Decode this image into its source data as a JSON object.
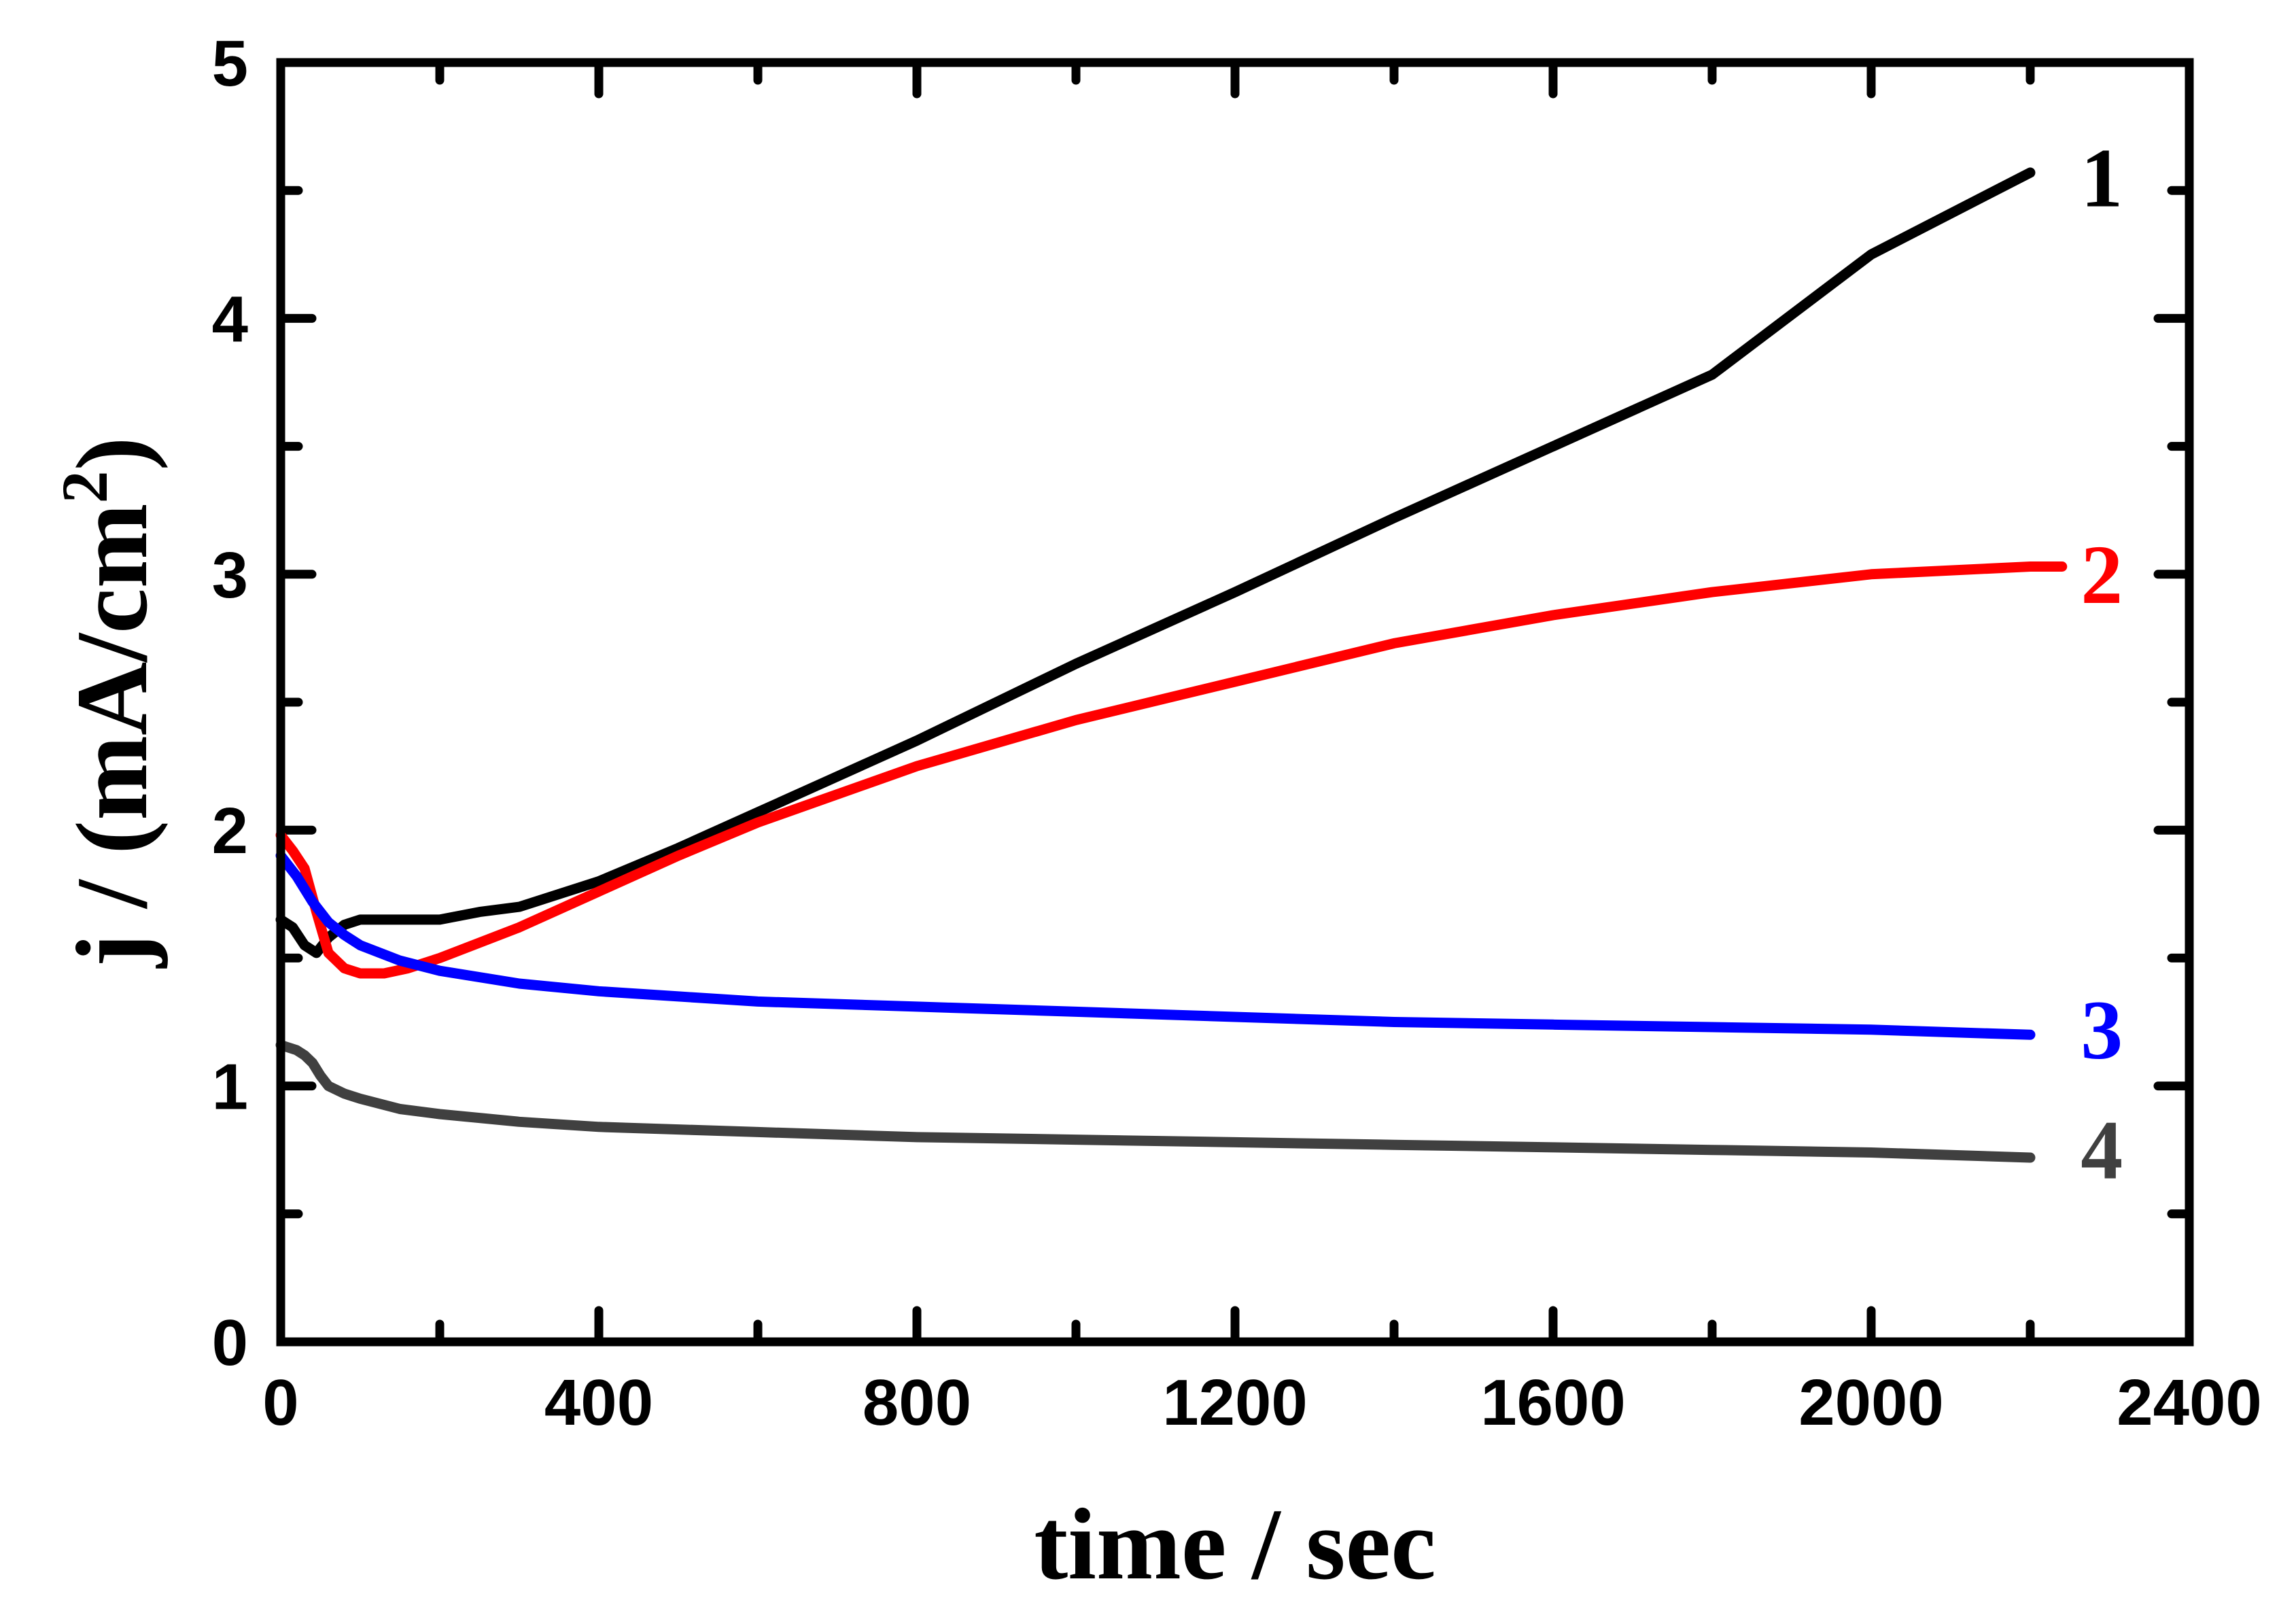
{
  "chart_data": {
    "type": "line",
    "xlabel": "time / sec",
    "ylabel_main": "j / (mA/cm",
    "ylabel_sup": "2",
    "ylabel_close": ")",
    "xlim": [
      0,
      2400
    ],
    "ylim": [
      0,
      5
    ],
    "x_ticks": [
      0,
      400,
      800,
      1200,
      1600,
      2000,
      2400
    ],
    "x_tick_labels": [
      "0",
      "400",
      "800",
      "1200",
      "1600",
      "2000",
      "2400"
    ],
    "y_ticks": [
      0,
      1,
      2,
      3,
      4,
      5
    ],
    "y_tick_labels": [
      "0",
      "1",
      "2",
      "3",
      "4",
      "5"
    ],
    "grid": false,
    "series": [
      {
        "name": "1",
        "color": "#000000",
        "x": [
          0,
          15,
          30,
          45,
          60,
          80,
          100,
          150,
          200,
          250,
          300,
          400,
          500,
          600,
          800,
          1000,
          1200,
          1400,
          1600,
          1800,
          2000,
          2200
        ],
        "y": [
          1.65,
          1.62,
          1.55,
          1.52,
          1.58,
          1.63,
          1.65,
          1.65,
          1.65,
          1.68,
          1.7,
          1.8,
          1.93,
          2.07,
          2.35,
          2.65,
          2.93,
          3.22,
          3.5,
          3.78,
          4.25,
          4.57
        ]
      },
      {
        "name": "2",
        "color": "#ff0000",
        "x": [
          0,
          15,
          30,
          45,
          60,
          80,
          100,
          130,
          160,
          200,
          300,
          400,
          500,
          600,
          800,
          1000,
          1200,
          1400,
          1600,
          1800,
          2000,
          2200,
          2240
        ],
        "y": [
          1.98,
          1.92,
          1.85,
          1.68,
          1.52,
          1.46,
          1.44,
          1.44,
          1.46,
          1.5,
          1.62,
          1.76,
          1.9,
          2.03,
          2.25,
          2.43,
          2.58,
          2.73,
          2.84,
          2.93,
          3.0,
          3.03,
          3.03
        ]
      },
      {
        "name": "3",
        "color": "#0000ff",
        "x": [
          0,
          20,
          40,
          60,
          80,
          100,
          150,
          200,
          300,
          400,
          500,
          600,
          800,
          1000,
          1200,
          1400,
          1600,
          1800,
          2000,
          2200
        ],
        "y": [
          1.9,
          1.82,
          1.72,
          1.64,
          1.59,
          1.55,
          1.49,
          1.45,
          1.4,
          1.37,
          1.35,
          1.33,
          1.31,
          1.29,
          1.27,
          1.25,
          1.24,
          1.23,
          1.22,
          1.2
        ]
      },
      {
        "name": "4",
        "color": "#404040",
        "x": [
          0,
          20,
          30,
          40,
          50,
          60,
          80,
          100,
          150,
          200,
          300,
          400,
          600,
          800,
          1000,
          1200,
          1400,
          1600,
          1800,
          2000,
          2200
        ],
        "y": [
          1.16,
          1.14,
          1.12,
          1.09,
          1.04,
          1.0,
          0.97,
          0.95,
          0.91,
          0.89,
          0.86,
          0.84,
          0.82,
          0.8,
          0.79,
          0.78,
          0.77,
          0.76,
          0.75,
          0.74,
          0.72
        ]
      }
    ],
    "annotations": [
      {
        "text": "1",
        "color": "#000000",
        "x": 2290,
        "y": 4.55
      },
      {
        "text": "2",
        "color": "#ff0000",
        "x": 2290,
        "y": 3.0
      },
      {
        "text": "3",
        "color": "#0000ff",
        "x": 2290,
        "y": 1.22
      },
      {
        "text": "4",
        "color": "#404040",
        "x": 2290,
        "y": 0.75
      }
    ]
  }
}
